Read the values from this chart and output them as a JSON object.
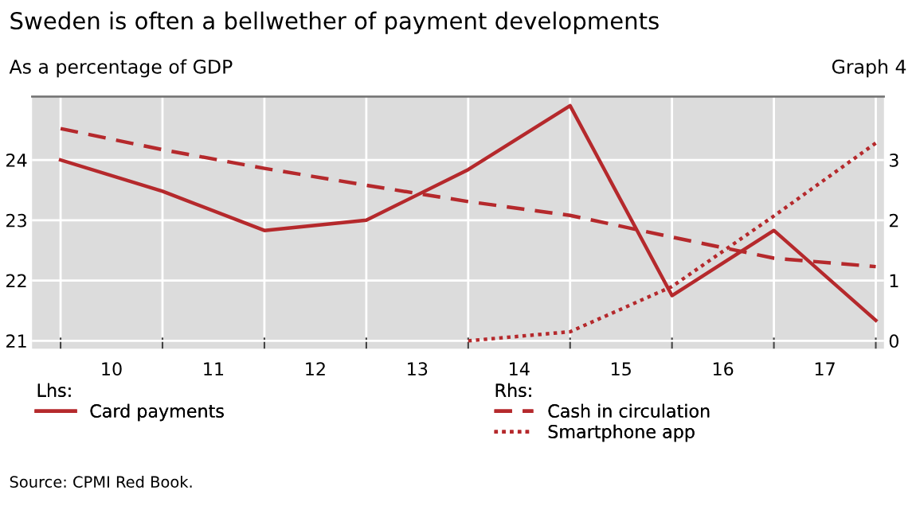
{
  "chart_data": {
    "type": "line",
    "title": "Sweden is often a bellwether of payment developments",
    "subtitle": "As a percentage of GDP",
    "annotations": [
      "Lhs:",
      "Rhs:",
      "Source: CPMI Red Book.",
      "Graph 4"
    ],
    "x": [
      9.5,
      10.5,
      11.5,
      12.5,
      13.5,
      14.5,
      15.5,
      16.5,
      17.5
    ],
    "series": [
      {
        "name": "Card payments",
        "color": "#b5292c",
        "line_style": "solid",
        "values": [
          24.0,
          23.48,
          22.83,
          23.0,
          23.84,
          24.9,
          21.75,
          22.83,
          21.34
        ]
      },
      {
        "name": "Cash in circulation",
        "color": "#b5292c",
        "line_style": "dashed",
        "axis": "y2",
        "values": [
          3.52,
          3.17,
          2.86,
          2.58,
          2.31,
          2.08,
          1.72,
          1.37,
          1.23
        ]
      },
      {
        "name": "Smartphone app",
        "color": "#b5292c",
        "line_style": "dotted",
        "axis": "y2",
        "values": [
          null,
          null,
          null,
          null,
          0,
          0.15,
          0.9,
          2.07,
          3.28
        ]
      }
    ],
    "xlim": [
      9.22,
      17.58
    ],
    "xticks": [
      {
        "value": 9.5,
        "label": null
      },
      {
        "value": 10,
        "label": "10"
      },
      {
        "value": 10.5,
        "label": null
      },
      {
        "value": 11,
        "label": "11"
      },
      {
        "value": 11.5,
        "label": null
      },
      {
        "value": 12,
        "label": "12"
      },
      {
        "value": 12.5,
        "label": null
      },
      {
        "value": 13,
        "label": "13"
      },
      {
        "value": 13.5,
        "label": null
      },
      {
        "value": 14,
        "label": "14"
      },
      {
        "value": 14.5,
        "label": null
      },
      {
        "value": 15,
        "label": "15"
      },
      {
        "value": 15.5,
        "label": null
      },
      {
        "value": 16,
        "label": "16"
      },
      {
        "value": 16.5,
        "label": null
      },
      {
        "value": 17,
        "label": "17"
      },
      {
        "value": 17.5,
        "label": null
      }
    ],
    "ylim": [
      20.87,
      25.05
    ],
    "yticks": [
      21,
      22,
      23,
      24
    ],
    "y2lim": [
      -0.13,
      4.05
    ],
    "y2ticks": [
      0,
      1,
      2,
      3
    ],
    "grid": true,
    "legend": "bottom"
  }
}
